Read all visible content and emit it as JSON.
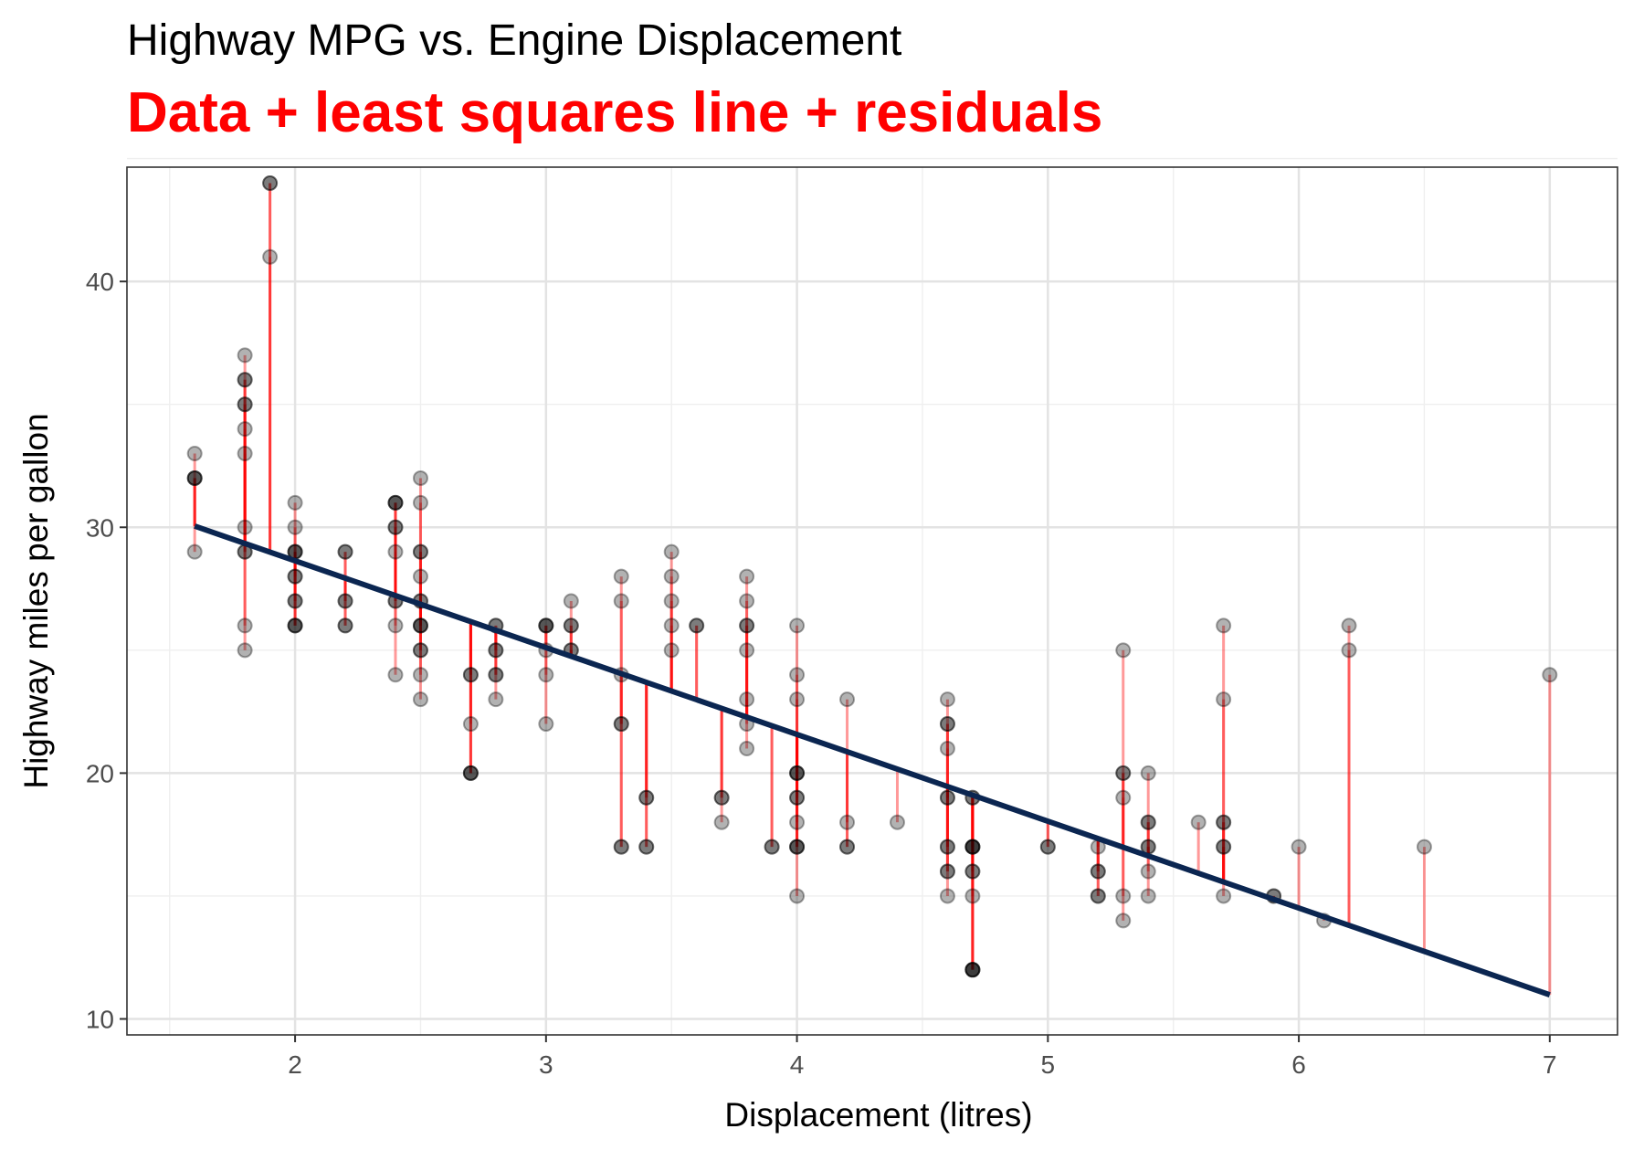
{
  "chart_data": {
    "type": "scatter",
    "title": "Highway MPG vs. Engine Displacement",
    "subtitle": "Data + least squares line + residuals",
    "xlabel": "Displacement (litres)",
    "ylabel": "Highway miles per gallon",
    "xlim": [
      1.33,
      7.27
    ],
    "ylim": [
      9.35,
      44.65
    ],
    "x_ticks": [
      2,
      3,
      4,
      5,
      6,
      7
    ],
    "y_ticks": [
      10,
      20,
      30,
      40
    ],
    "grid": true,
    "colors": {
      "points": "#000000",
      "residuals": "#ff0000",
      "fit_line": "#0b2651",
      "subtitle": "#ff0000",
      "panel_border": "#333333"
    },
    "fit_line": {
      "intercept": 35.698,
      "slope": -3.531,
      "x_range": [
        1.6,
        7.0
      ]
    },
    "points": [
      [
        1.6,
        33
      ],
      [
        1.6,
        32
      ],
      [
        1.6,
        32
      ],
      [
        1.6,
        32
      ],
      [
        1.6,
        29
      ],
      [
        1.8,
        37
      ],
      [
        1.8,
        36
      ],
      [
        1.8,
        36
      ],
      [
        1.8,
        35
      ],
      [
        1.8,
        35
      ],
      [
        1.8,
        34
      ],
      [
        1.8,
        33
      ],
      [
        1.8,
        30
      ],
      [
        1.8,
        29
      ],
      [
        1.8,
        29
      ],
      [
        1.8,
        26
      ],
      [
        1.8,
        25
      ],
      [
        1.9,
        44
      ],
      [
        1.9,
        44
      ],
      [
        1.9,
        41
      ],
      [
        2.0,
        31
      ],
      [
        2.0,
        30
      ],
      [
        2.0,
        29
      ],
      [
        2.0,
        29
      ],
      [
        2.0,
        29
      ],
      [
        2.0,
        28
      ],
      [
        2.0,
        28
      ],
      [
        2.0,
        27
      ],
      [
        2.0,
        27
      ],
      [
        2.0,
        26
      ],
      [
        2.0,
        26
      ],
      [
        2.0,
        26
      ],
      [
        2.2,
        29
      ],
      [
        2.2,
        29
      ],
      [
        2.2,
        27
      ],
      [
        2.2,
        27
      ],
      [
        2.2,
        26
      ],
      [
        2.2,
        26
      ],
      [
        2.4,
        31
      ],
      [
        2.4,
        31
      ],
      [
        2.4,
        31
      ],
      [
        2.4,
        30
      ],
      [
        2.4,
        30
      ],
      [
        2.4,
        29
      ],
      [
        2.4,
        27
      ],
      [
        2.4,
        27
      ],
      [
        2.4,
        26
      ],
      [
        2.4,
        24
      ],
      [
        2.5,
        32
      ],
      [
        2.5,
        31
      ],
      [
        2.5,
        29
      ],
      [
        2.5,
        29
      ],
      [
        2.5,
        28
      ],
      [
        2.5,
        27
      ],
      [
        2.5,
        27
      ],
      [
        2.5,
        26
      ],
      [
        2.5,
        26
      ],
      [
        2.5,
        26
      ],
      [
        2.5,
        25
      ],
      [
        2.5,
        25
      ],
      [
        2.5,
        24
      ],
      [
        2.5,
        23
      ],
      [
        2.7,
        24
      ],
      [
        2.7,
        24
      ],
      [
        2.7,
        22
      ],
      [
        2.7,
        20
      ],
      [
        2.7,
        20
      ],
      [
        2.7,
        20
      ],
      [
        2.8,
        26
      ],
      [
        2.8,
        26
      ],
      [
        2.8,
        25
      ],
      [
        2.8,
        25
      ],
      [
        2.8,
        24
      ],
      [
        2.8,
        24
      ],
      [
        2.8,
        23
      ],
      [
        3.0,
        26
      ],
      [
        3.0,
        26
      ],
      [
        3.0,
        26
      ],
      [
        3.0,
        25
      ],
      [
        3.0,
        24
      ],
      [
        3.0,
        22
      ],
      [
        3.1,
        27
      ],
      [
        3.1,
        26
      ],
      [
        3.1,
        26
      ],
      [
        3.1,
        25
      ],
      [
        3.1,
        25
      ],
      [
        3.3,
        28
      ],
      [
        3.3,
        27
      ],
      [
        3.3,
        24
      ],
      [
        3.3,
        22
      ],
      [
        3.3,
        22
      ],
      [
        3.3,
        17
      ],
      [
        3.3,
        17
      ],
      [
        3.4,
        19
      ],
      [
        3.4,
        19
      ],
      [
        3.4,
        17
      ],
      [
        3.4,
        17
      ],
      [
        3.5,
        29
      ],
      [
        3.5,
        28
      ],
      [
        3.5,
        27
      ],
      [
        3.5,
        26
      ],
      [
        3.5,
        25
      ],
      [
        3.6,
        26
      ],
      [
        3.6,
        26
      ],
      [
        3.7,
        19
      ],
      [
        3.7,
        19
      ],
      [
        3.7,
        18
      ],
      [
        3.8,
        28
      ],
      [
        3.8,
        27
      ],
      [
        3.8,
        26
      ],
      [
        3.8,
        26
      ],
      [
        3.8,
        25
      ],
      [
        3.8,
        23
      ],
      [
        3.8,
        22
      ],
      [
        3.8,
        21
      ],
      [
        3.9,
        17
      ],
      [
        3.9,
        17
      ],
      [
        4.0,
        26
      ],
      [
        4.0,
        24
      ],
      [
        4.0,
        23
      ],
      [
        4.0,
        20
      ],
      [
        4.0,
        20
      ],
      [
        4.0,
        20
      ],
      [
        4.0,
        19
      ],
      [
        4.0,
        19
      ],
      [
        4.0,
        18
      ],
      [
        4.0,
        17
      ],
      [
        4.0,
        17
      ],
      [
        4.0,
        17
      ],
      [
        4.0,
        15
      ],
      [
        4.2,
        23
      ],
      [
        4.2,
        18
      ],
      [
        4.2,
        17
      ],
      [
        4.2,
        17
      ],
      [
        4.4,
        18
      ],
      [
        4.6,
        23
      ],
      [
        4.6,
        22
      ],
      [
        4.6,
        22
      ],
      [
        4.6,
        21
      ],
      [
        4.6,
        19
      ],
      [
        4.6,
        19
      ],
      [
        4.6,
        17
      ],
      [
        4.6,
        17
      ],
      [
        4.6,
        16
      ],
      [
        4.6,
        16
      ],
      [
        4.6,
        15
      ],
      [
        4.7,
        19
      ],
      [
        4.7,
        19
      ],
      [
        4.7,
        17
      ],
      [
        4.7,
        17
      ],
      [
        4.7,
        17
      ],
      [
        4.7,
        17
      ],
      [
        4.7,
        16
      ],
      [
        4.7,
        16
      ],
      [
        4.7,
        15
      ],
      [
        4.7,
        12
      ],
      [
        4.7,
        12
      ],
      [
        4.7,
        12
      ],
      [
        4.7,
        12
      ],
      [
        5.0,
        17
      ],
      [
        5.0,
        17
      ],
      [
        5.2,
        17
      ],
      [
        5.2,
        16
      ],
      [
        5.2,
        16
      ],
      [
        5.2,
        15
      ],
      [
        5.2,
        15
      ],
      [
        5.3,
        25
      ],
      [
        5.3,
        20
      ],
      [
        5.3,
        20
      ],
      [
        5.3,
        19
      ],
      [
        5.3,
        15
      ],
      [
        5.3,
        14
      ],
      [
        5.4,
        20
      ],
      [
        5.4,
        18
      ],
      [
        5.4,
        18
      ],
      [
        5.4,
        17
      ],
      [
        5.4,
        17
      ],
      [
        5.4,
        16
      ],
      [
        5.4,
        15
      ],
      [
        5.6,
        18
      ],
      [
        5.7,
        26
      ],
      [
        5.7,
        23
      ],
      [
        5.7,
        18
      ],
      [
        5.7,
        18
      ],
      [
        5.7,
        17
      ],
      [
        5.7,
        17
      ],
      [
        5.7,
        15
      ],
      [
        5.9,
        15
      ],
      [
        5.9,
        15
      ],
      [
        6.0,
        17
      ],
      [
        6.1,
        14
      ],
      [
        6.2,
        26
      ],
      [
        6.2,
        25
      ],
      [
        6.5,
        17
      ],
      [
        7.0,
        24
      ]
    ]
  }
}
